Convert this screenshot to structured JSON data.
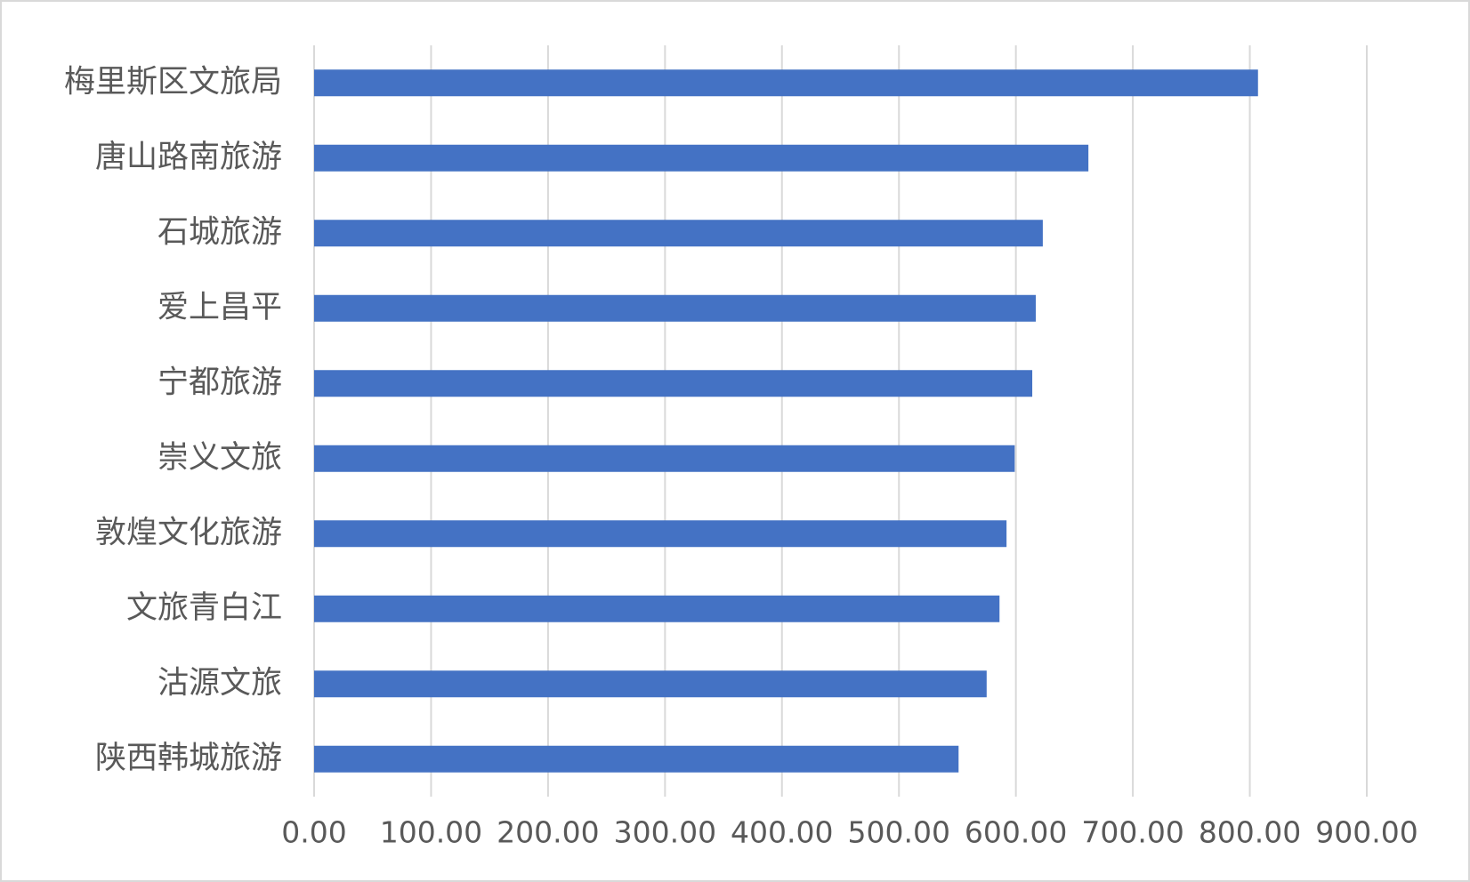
{
  "chart_data": {
    "type": "bar",
    "orientation": "horizontal",
    "categories": [
      "梅里斯区文旅局",
      "唐山路南旅游",
      "石城旅游",
      "爱上昌平",
      "宁都旅游",
      "崇义文旅",
      "敦煌文化旅游",
      "文旅青白江",
      "沽源文旅",
      "陕西韩城旅游"
    ],
    "values": [
      807,
      662,
      623,
      617,
      614,
      599,
      592,
      586,
      575,
      551
    ],
    "color": "#4472c4",
    "xlim": [
      0,
      900
    ],
    "xticks": [
      {
        "value": 0,
        "label": "0.00"
      },
      {
        "value": 100,
        "label": "100.00"
      },
      {
        "value": 200,
        "label": "200.00"
      },
      {
        "value": 300,
        "label": "300.00"
      },
      {
        "value": 400,
        "label": "400.00"
      },
      {
        "value": 500,
        "label": "500.00"
      },
      {
        "value": 600,
        "label": "600.00"
      },
      {
        "value": 700,
        "label": "700.00"
      },
      {
        "value": 800,
        "label": "800.00"
      },
      {
        "value": 900,
        "label": "900.00"
      }
    ],
    "grid": true
  }
}
